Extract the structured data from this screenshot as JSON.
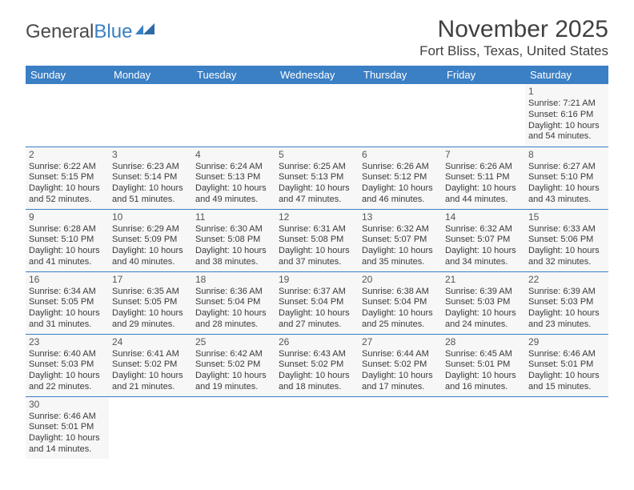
{
  "logo": {
    "text1": "General",
    "text2": "Blue"
  },
  "title": "November 2025",
  "location": "Fort Bliss, Texas, United States",
  "colors": {
    "header_bg": "#3b7fc4",
    "header_fg": "#ffffff",
    "cell_bg": "#f7f7f7",
    "border": "#3b7fc4",
    "text": "#3a3a3a"
  },
  "day_headers": [
    "Sunday",
    "Monday",
    "Tuesday",
    "Wednesday",
    "Thursday",
    "Friday",
    "Saturday"
  ],
  "weeks": [
    [
      null,
      null,
      null,
      null,
      null,
      null,
      {
        "n": "1",
        "sr": "Sunrise: 7:21 AM",
        "ss": "Sunset: 6:16 PM",
        "dl1": "Daylight: 10 hours",
        "dl2": "and 54 minutes."
      }
    ],
    [
      {
        "n": "2",
        "sr": "Sunrise: 6:22 AM",
        "ss": "Sunset: 5:15 PM",
        "dl1": "Daylight: 10 hours",
        "dl2": "and 52 minutes."
      },
      {
        "n": "3",
        "sr": "Sunrise: 6:23 AM",
        "ss": "Sunset: 5:14 PM",
        "dl1": "Daylight: 10 hours",
        "dl2": "and 51 minutes."
      },
      {
        "n": "4",
        "sr": "Sunrise: 6:24 AM",
        "ss": "Sunset: 5:13 PM",
        "dl1": "Daylight: 10 hours",
        "dl2": "and 49 minutes."
      },
      {
        "n": "5",
        "sr": "Sunrise: 6:25 AM",
        "ss": "Sunset: 5:13 PM",
        "dl1": "Daylight: 10 hours",
        "dl2": "and 47 minutes."
      },
      {
        "n": "6",
        "sr": "Sunrise: 6:26 AM",
        "ss": "Sunset: 5:12 PM",
        "dl1": "Daylight: 10 hours",
        "dl2": "and 46 minutes."
      },
      {
        "n": "7",
        "sr": "Sunrise: 6:26 AM",
        "ss": "Sunset: 5:11 PM",
        "dl1": "Daylight: 10 hours",
        "dl2": "and 44 minutes."
      },
      {
        "n": "8",
        "sr": "Sunrise: 6:27 AM",
        "ss": "Sunset: 5:10 PM",
        "dl1": "Daylight: 10 hours",
        "dl2": "and 43 minutes."
      }
    ],
    [
      {
        "n": "9",
        "sr": "Sunrise: 6:28 AM",
        "ss": "Sunset: 5:10 PM",
        "dl1": "Daylight: 10 hours",
        "dl2": "and 41 minutes."
      },
      {
        "n": "10",
        "sr": "Sunrise: 6:29 AM",
        "ss": "Sunset: 5:09 PM",
        "dl1": "Daylight: 10 hours",
        "dl2": "and 40 minutes."
      },
      {
        "n": "11",
        "sr": "Sunrise: 6:30 AM",
        "ss": "Sunset: 5:08 PM",
        "dl1": "Daylight: 10 hours",
        "dl2": "and 38 minutes."
      },
      {
        "n": "12",
        "sr": "Sunrise: 6:31 AM",
        "ss": "Sunset: 5:08 PM",
        "dl1": "Daylight: 10 hours",
        "dl2": "and 37 minutes."
      },
      {
        "n": "13",
        "sr": "Sunrise: 6:32 AM",
        "ss": "Sunset: 5:07 PM",
        "dl1": "Daylight: 10 hours",
        "dl2": "and 35 minutes."
      },
      {
        "n": "14",
        "sr": "Sunrise: 6:32 AM",
        "ss": "Sunset: 5:07 PM",
        "dl1": "Daylight: 10 hours",
        "dl2": "and 34 minutes."
      },
      {
        "n": "15",
        "sr": "Sunrise: 6:33 AM",
        "ss": "Sunset: 5:06 PM",
        "dl1": "Daylight: 10 hours",
        "dl2": "and 32 minutes."
      }
    ],
    [
      {
        "n": "16",
        "sr": "Sunrise: 6:34 AM",
        "ss": "Sunset: 5:05 PM",
        "dl1": "Daylight: 10 hours",
        "dl2": "and 31 minutes."
      },
      {
        "n": "17",
        "sr": "Sunrise: 6:35 AM",
        "ss": "Sunset: 5:05 PM",
        "dl1": "Daylight: 10 hours",
        "dl2": "and 29 minutes."
      },
      {
        "n": "18",
        "sr": "Sunrise: 6:36 AM",
        "ss": "Sunset: 5:04 PM",
        "dl1": "Daylight: 10 hours",
        "dl2": "and 28 minutes."
      },
      {
        "n": "19",
        "sr": "Sunrise: 6:37 AM",
        "ss": "Sunset: 5:04 PM",
        "dl1": "Daylight: 10 hours",
        "dl2": "and 27 minutes."
      },
      {
        "n": "20",
        "sr": "Sunrise: 6:38 AM",
        "ss": "Sunset: 5:04 PM",
        "dl1": "Daylight: 10 hours",
        "dl2": "and 25 minutes."
      },
      {
        "n": "21",
        "sr": "Sunrise: 6:39 AM",
        "ss": "Sunset: 5:03 PM",
        "dl1": "Daylight: 10 hours",
        "dl2": "and 24 minutes."
      },
      {
        "n": "22",
        "sr": "Sunrise: 6:39 AM",
        "ss": "Sunset: 5:03 PM",
        "dl1": "Daylight: 10 hours",
        "dl2": "and 23 minutes."
      }
    ],
    [
      {
        "n": "23",
        "sr": "Sunrise: 6:40 AM",
        "ss": "Sunset: 5:03 PM",
        "dl1": "Daylight: 10 hours",
        "dl2": "and 22 minutes."
      },
      {
        "n": "24",
        "sr": "Sunrise: 6:41 AM",
        "ss": "Sunset: 5:02 PM",
        "dl1": "Daylight: 10 hours",
        "dl2": "and 21 minutes."
      },
      {
        "n": "25",
        "sr": "Sunrise: 6:42 AM",
        "ss": "Sunset: 5:02 PM",
        "dl1": "Daylight: 10 hours",
        "dl2": "and 19 minutes."
      },
      {
        "n": "26",
        "sr": "Sunrise: 6:43 AM",
        "ss": "Sunset: 5:02 PM",
        "dl1": "Daylight: 10 hours",
        "dl2": "and 18 minutes."
      },
      {
        "n": "27",
        "sr": "Sunrise: 6:44 AM",
        "ss": "Sunset: 5:02 PM",
        "dl1": "Daylight: 10 hours",
        "dl2": "and 17 minutes."
      },
      {
        "n": "28",
        "sr": "Sunrise: 6:45 AM",
        "ss": "Sunset: 5:01 PM",
        "dl1": "Daylight: 10 hours",
        "dl2": "and 16 minutes."
      },
      {
        "n": "29",
        "sr": "Sunrise: 6:46 AM",
        "ss": "Sunset: 5:01 PM",
        "dl1": "Daylight: 10 hours",
        "dl2": "and 15 minutes."
      }
    ],
    [
      {
        "n": "30",
        "sr": "Sunrise: 6:46 AM",
        "ss": "Sunset: 5:01 PM",
        "dl1": "Daylight: 10 hours",
        "dl2": "and 14 minutes."
      },
      null,
      null,
      null,
      null,
      null,
      null
    ]
  ]
}
